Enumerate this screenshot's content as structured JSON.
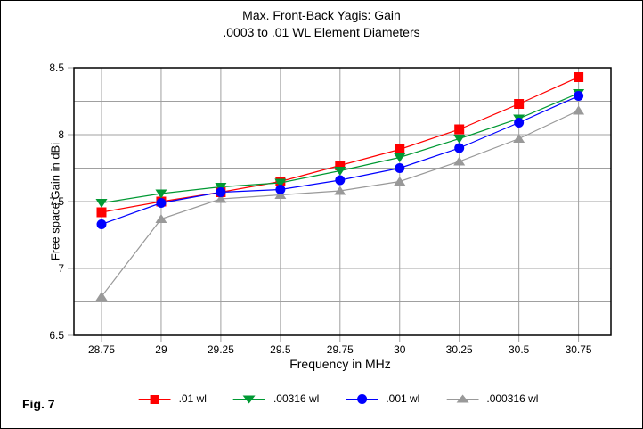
{
  "page": {
    "fig_label": "Fig. 7"
  },
  "chart_data": {
    "type": "line",
    "title": "Max. Front-Back Yagis: Gain",
    "subtitle": ".0003 to .01 WL Element Diameters",
    "xlabel": "Frequency in MHz",
    "ylabel": "Free space Gain in dBi",
    "x": [
      28.75,
      29,
      29.25,
      29.5,
      29.75,
      30,
      30.25,
      30.5,
      30.75
    ],
    "x_tick_labels": [
      "28.75",
      "29",
      "29.25",
      "29.5",
      "29.75",
      "30",
      "30.25",
      "30.5",
      "30.75"
    ],
    "ylim": [
      6.5,
      8.5
    ],
    "y_ticks": [
      8.5,
      8,
      7.5,
      7,
      6.5
    ],
    "y_tick_labels": [
      "8.5",
      "8",
      "7.5",
      "7",
      "6.5"
    ],
    "y_grid_step": 0.25,
    "grid": true,
    "grid_color": "#a0a0a0",
    "axis_color": "#000000",
    "legend_position": "bottom",
    "series": [
      {
        "name": ".01 wl",
        "color": "#ff0000",
        "marker": "square",
        "values": [
          7.42,
          7.5,
          7.57,
          7.65,
          7.77,
          7.89,
          8.04,
          8.23,
          8.43
        ]
      },
      {
        "name": ".00316 wl",
        "color": "#009933",
        "marker": "triangle-down",
        "values": [
          7.49,
          7.56,
          7.61,
          7.64,
          7.73,
          7.83,
          7.97,
          8.12,
          8.31
        ]
      },
      {
        "name": ".001 wl",
        "color": "#0000ff",
        "marker": "circle",
        "values": [
          7.33,
          7.49,
          7.57,
          7.59,
          7.66,
          7.75,
          7.9,
          8.09,
          8.29
        ]
      },
      {
        "name": ".000316 wl",
        "color": "#999999",
        "marker": "triangle-up",
        "values": [
          6.79,
          7.37,
          7.52,
          7.55,
          7.58,
          7.65,
          7.8,
          7.97,
          8.18
        ]
      }
    ],
    "z_order": [
      3,
      0,
      1,
      2
    ]
  }
}
